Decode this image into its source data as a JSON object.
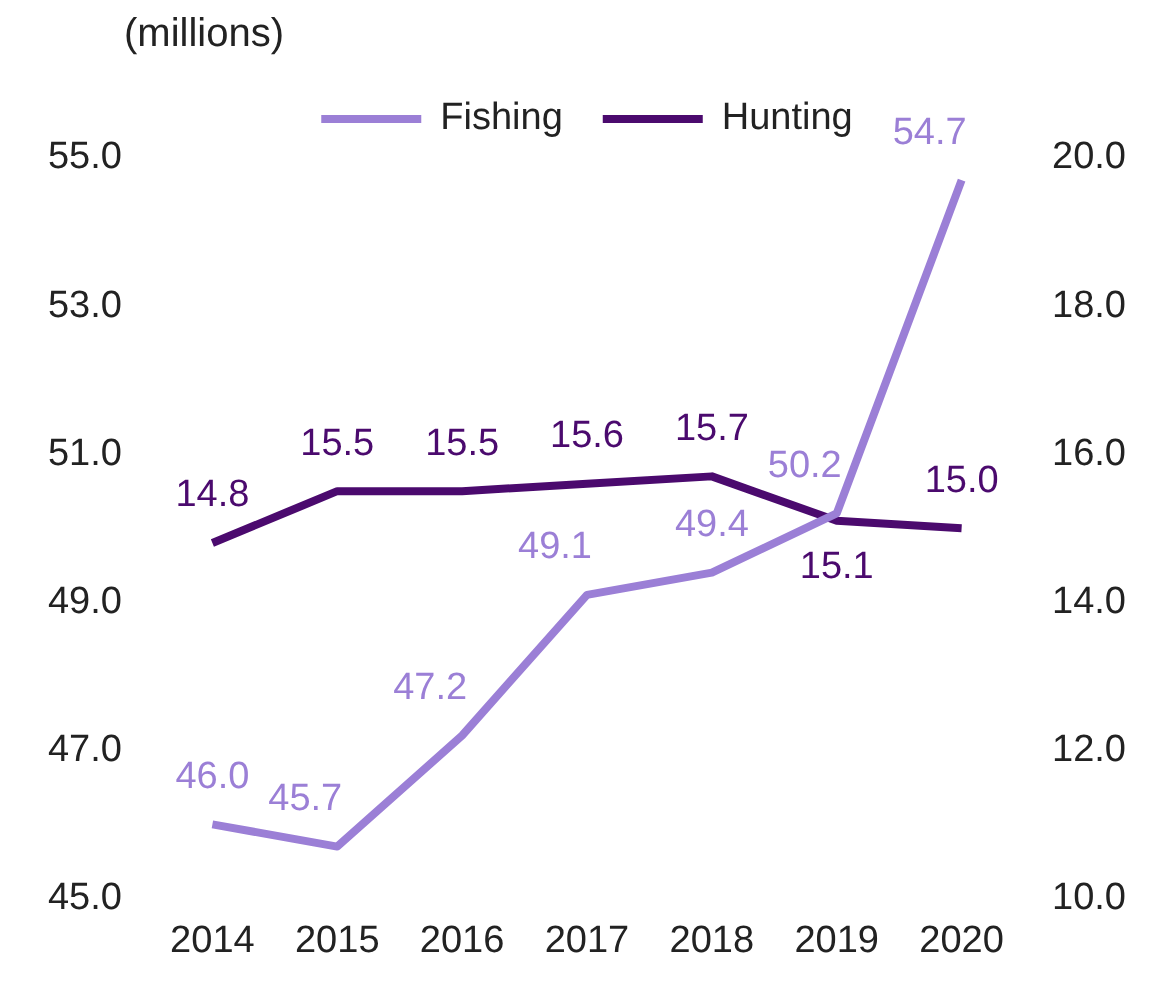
{
  "chart_data": {
    "type": "line",
    "ylabel": "(millions)",
    "categories": [
      "2014",
      "2015",
      "2016",
      "2017",
      "2018",
      "2019",
      "2020"
    ],
    "series": [
      {
        "name": "Fishing",
        "color": "#9b7fd6",
        "values": [
          46.0,
          45.7,
          47.2,
          49.1,
          49.4,
          50.2,
          54.7
        ],
        "value_labels": [
          "46.0",
          "45.7",
          "47.2",
          "49.1",
          "49.4",
          "50.2",
          "54.7"
        ]
      },
      {
        "name": "Hunting",
        "color": "#4b0a6e",
        "axis": "y2",
        "values": [
          14.8,
          15.5,
          15.5,
          15.6,
          15.7,
          15.1,
          15.0
        ],
        "value_labels": [
          "14.8",
          "15.5",
          "15.5",
          "15.6",
          "15.7",
          "15.1",
          "15.0"
        ]
      }
    ],
    "ylim": [
      45,
      55
    ],
    "yticks": [
      {
        "value": 45,
        "label": "45.0"
      },
      {
        "value": 47,
        "label": "47.0"
      },
      {
        "value": 49,
        "label": "49.0"
      },
      {
        "value": 51,
        "label": "51.0"
      },
      {
        "value": 53,
        "label": "53.0"
      },
      {
        "value": 55,
        "label": "55.0"
      }
    ],
    "y2lim": [
      10,
      20
    ],
    "y2ticks": [
      {
        "value": 10,
        "label": "10.0"
      },
      {
        "value": 12,
        "label": "12.0"
      },
      {
        "value": 14,
        "label": "14.0"
      },
      {
        "value": 16,
        "label": "16.0"
      },
      {
        "value": 18,
        "label": "18.0"
      },
      {
        "value": 20,
        "label": "20.0"
      }
    ],
    "grid": false,
    "legend": "top",
    "marker": "none",
    "line_style": "solid"
  }
}
